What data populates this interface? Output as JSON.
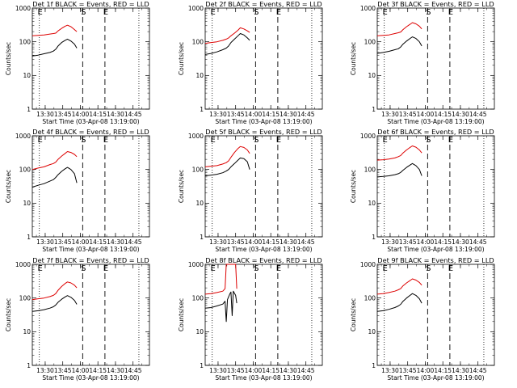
{
  "colors": {
    "events": "#000000",
    "lld": "#dd0000",
    "axes": "#000000",
    "background": "#ffffff"
  },
  "shared": {
    "ylabel": "Counts/sec",
    "xlabel": "Start Time (03-Apr-08 13:19:00)",
    "x_tick_labels": [
      "13:30",
      "13:45",
      "14:00",
      "14:15",
      "14:30",
      "14:45"
    ],
    "y_tick_labels": [
      "1",
      "10",
      "100",
      "1000"
    ],
    "marker_labels": [
      "E",
      "S",
      "E"
    ]
  },
  "chart_data": [
    {
      "type": "line",
      "title": "Det 1f BLACK = Events, RED = LLD",
      "xlabel": "Start Time (03-Apr-08 13:19:00)",
      "ylabel": "Counts/sec",
      "x_unit": "minutes after 13:19:00",
      "xlim": [
        0,
        100
      ],
      "ylim": [
        1,
        1000
      ],
      "yscale": "log",
      "xticks_min": [
        11,
        26,
        41,
        56,
        71,
        86
      ],
      "dotted_lines_min": [
        6,
        91
      ],
      "dashed_lines_min": [
        43,
        62
      ],
      "markers": [
        {
          "label": "E",
          "x": 6
        },
        {
          "label": "S",
          "x": 43
        },
        {
          "label": "E",
          "x": 62
        }
      ],
      "series": [
        {
          "color": "#000000",
          "x": [
            0,
            5,
            10,
            15,
            18,
            20,
            22,
            25,
            28,
            30,
            33,
            36,
            38
          ],
          "values": [
            38,
            40,
            44,
            48,
            53,
            60,
            75,
            95,
            110,
            120,
            105,
            85,
            65
          ]
        },
        {
          "color": "#dd0000",
          "x": [
            0,
            5,
            10,
            15,
            18,
            20,
            22,
            25,
            28,
            30,
            33,
            36,
            38
          ],
          "values": [
            150,
            155,
            160,
            170,
            175,
            180,
            210,
            250,
            290,
            310,
            280,
            230,
            200
          ]
        }
      ]
    },
    {
      "type": "line",
      "title": "Det 2f BLACK = Events, RED = LLD",
      "xlabel": "Start Time (03-Apr-08 13:19:00)",
      "ylabel": "Counts/sec",
      "x_unit": "minutes after 13:19:00",
      "xlim": [
        0,
        100
      ],
      "ylim": [
        1,
        1000
      ],
      "yscale": "log",
      "xticks_min": [
        11,
        26,
        41,
        56,
        71,
        86
      ],
      "dotted_lines_min": [
        6,
        91
      ],
      "dashed_lines_min": [
        43,
        62
      ],
      "markers": [
        {
          "label": "E",
          "x": 6
        },
        {
          "label": "S",
          "x": 43
        },
        {
          "label": "E",
          "x": 62
        }
      ],
      "series": [
        {
          "color": "#000000",
          "x": [
            0,
            5,
            10,
            15,
            18,
            20,
            22,
            25,
            28,
            30,
            33,
            36,
            38
          ],
          "values": [
            42,
            45,
            50,
            58,
            65,
            75,
            95,
            120,
            150,
            175,
            160,
            130,
            110
          ]
        },
        {
          "color": "#dd0000",
          "x": [
            0,
            5,
            10,
            15,
            18,
            20,
            22,
            25,
            28,
            30,
            33,
            36,
            38
          ],
          "values": [
            90,
            95,
            100,
            110,
            120,
            130,
            150,
            180,
            220,
            260,
            240,
            210,
            190
          ]
        }
      ]
    },
    {
      "type": "line",
      "title": "Det 3f BLACK = Events, RED = LLD",
      "xlabel": "Start Time (03-Apr-08 13:19:00)",
      "ylabel": "Counts/sec",
      "x_unit": "minutes after 13:19:00",
      "xlim": [
        0,
        100
      ],
      "ylim": [
        1,
        1000
      ],
      "yscale": "log",
      "xticks_min": [
        11,
        26,
        41,
        56,
        71,
        86
      ],
      "dotted_lines_min": [
        6,
        91
      ],
      "dashed_lines_min": [
        43,
        62
      ],
      "markers": [
        {
          "label": "E",
          "x": 6
        },
        {
          "label": "S",
          "x": 43
        },
        {
          "label": "E",
          "x": 62
        }
      ],
      "series": [
        {
          "color": "#000000",
          "x": [
            0,
            5,
            10,
            15,
            18,
            20,
            22,
            25,
            28,
            30,
            33,
            36,
            38
          ],
          "values": [
            45,
            48,
            52,
            58,
            62,
            70,
            85,
            105,
            125,
            140,
            125,
            100,
            75
          ]
        },
        {
          "color": "#dd0000",
          "x": [
            0,
            5,
            10,
            15,
            18,
            20,
            22,
            25,
            28,
            30,
            33,
            36,
            38
          ],
          "values": [
            150,
            155,
            160,
            175,
            185,
            195,
            230,
            280,
            330,
            370,
            340,
            290,
            240
          ]
        }
      ]
    },
    {
      "type": "line",
      "title": "Det 4f BLACK = Events, RED = LLD",
      "xlabel": "Start Time (03-Apr-08 13:19:00)",
      "ylabel": "Counts/sec",
      "x_unit": "minutes after 13:19:00",
      "xlim": [
        0,
        100
      ],
      "ylim": [
        1,
        1000
      ],
      "yscale": "log",
      "xticks_min": [
        11,
        26,
        41,
        56,
        71,
        86
      ],
      "dotted_lines_min": [
        6,
        91
      ],
      "dashed_lines_min": [
        43,
        62
      ],
      "markers": [
        {
          "label": "E",
          "x": 6
        },
        {
          "label": "S",
          "x": 43
        },
        {
          "label": "E",
          "x": 62
        }
      ],
      "series": [
        {
          "color": "#000000",
          "x": [
            0,
            5,
            10,
            15,
            18,
            20,
            22,
            25,
            28,
            30,
            33,
            36,
            38
          ],
          "values": [
            30,
            34,
            38,
            45,
            50,
            58,
            70,
            88,
            105,
            115,
            100,
            75,
            40
          ]
        },
        {
          "color": "#dd0000",
          "x": [
            0,
            5,
            10,
            15,
            18,
            20,
            22,
            25,
            28,
            30,
            33,
            36,
            38
          ],
          "values": [
            100,
            110,
            120,
            140,
            150,
            165,
            200,
            250,
            300,
            340,
            320,
            280,
            240
          ]
        }
      ]
    },
    {
      "type": "line",
      "title": "Det 5f BLACK = Events, RED = LLD",
      "xlabel": "Start Time (03-Apr-08 13:19:00)",
      "ylabel": "Counts/sec",
      "x_unit": "minutes after 13:19:00",
      "xlim": [
        0,
        100
      ],
      "ylim": [
        1,
        1000
      ],
      "yscale": "log",
      "xticks_min": [
        11,
        26,
        41,
        56,
        71,
        86
      ],
      "dotted_lines_min": [
        6,
        91
      ],
      "dashed_lines_min": [
        43,
        62
      ],
      "markers": [
        {
          "label": "E",
          "x": 6
        },
        {
          "label": "S",
          "x": 43
        },
        {
          "label": "E",
          "x": 62
        }
      ],
      "series": [
        {
          "color": "#000000",
          "x": [
            0,
            5,
            10,
            15,
            18,
            20,
            22,
            25,
            28,
            30,
            33,
            36,
            38
          ],
          "values": [
            65,
            68,
            72,
            80,
            90,
            100,
            120,
            150,
            190,
            220,
            210,
            170,
            100
          ]
        },
        {
          "color": "#dd0000",
          "x": [
            0,
            5,
            10,
            15,
            18,
            20,
            22,
            25,
            28,
            30,
            33,
            36,
            38
          ],
          "values": [
            120,
            125,
            130,
            145,
            160,
            180,
            230,
            320,
            420,
            480,
            450,
            380,
            300
          ]
        }
      ]
    },
    {
      "type": "line",
      "title": "Det 6f BLACK = Events, RED = LLD",
      "xlabel": "Start Time (03-Apr-08 13:19:00)",
      "ylabel": "Counts/sec",
      "x_unit": "minutes after 13:19:00",
      "xlim": [
        0,
        100
      ],
      "ylim": [
        1,
        1000
      ],
      "yscale": "log",
      "xticks_min": [
        11,
        26,
        41,
        56,
        71,
        86
      ],
      "dotted_lines_min": [
        6,
        91
      ],
      "dashed_lines_min": [
        43,
        62
      ],
      "markers": [
        {
          "label": "E",
          "x": 6
        },
        {
          "label": "S",
          "x": 43
        },
        {
          "label": "E",
          "x": 62
        }
      ],
      "series": [
        {
          "color": "#000000",
          "x": [
            0,
            5,
            10,
            15,
            18,
            20,
            22,
            25,
            28,
            30,
            33,
            36,
            38
          ],
          "values": [
            60,
            62,
            65,
            70,
            75,
            82,
            95,
            115,
            135,
            150,
            130,
            100,
            65
          ]
        },
        {
          "color": "#dd0000",
          "x": [
            0,
            5,
            10,
            15,
            18,
            20,
            22,
            25,
            28,
            30,
            33,
            36,
            38
          ],
          "values": [
            190,
            195,
            205,
            220,
            240,
            260,
            310,
            380,
            450,
            500,
            460,
            380,
            310
          ]
        }
      ]
    },
    {
      "type": "line",
      "title": "Det 7f BLACK = Events, RED = LLD",
      "xlabel": "Start Time (03-Apr-08 13:19:00)",
      "ylabel": "Counts/sec",
      "x_unit": "minutes after 13:19:00",
      "xlim": [
        0,
        100
      ],
      "ylim": [
        1,
        1000
      ],
      "yscale": "log",
      "xticks_min": [
        11,
        26,
        41,
        56,
        71,
        86
      ],
      "dotted_lines_min": [
        6,
        91
      ],
      "dashed_lines_min": [
        43,
        62
      ],
      "markers": [
        {
          "label": "E",
          "x": 6
        },
        {
          "label": "S",
          "x": 43
        },
        {
          "label": "E",
          "x": 62
        }
      ],
      "series": [
        {
          "color": "#000000",
          "x": [
            0,
            5,
            10,
            15,
            18,
            20,
            22,
            25,
            28,
            30,
            33,
            36,
            38
          ],
          "values": [
            40,
            42,
            45,
            50,
            55,
            62,
            75,
            92,
            108,
            118,
            105,
            85,
            65
          ]
        },
        {
          "color": "#dd0000",
          "x": [
            0,
            5,
            10,
            15,
            18,
            20,
            22,
            25,
            28,
            30,
            33,
            36,
            38
          ],
          "values": [
            90,
            95,
            100,
            110,
            120,
            135,
            170,
            220,
            270,
            300,
            280,
            240,
            200
          ]
        }
      ]
    },
    {
      "type": "line",
      "title": "Det 8f BLACK = Events, RED = LLD",
      "xlabel": "Start Time (03-Apr-08 13:19:00)",
      "ylabel": "Counts/sec",
      "x_unit": "minutes after 13:19:00",
      "xlim": [
        0,
        100
      ],
      "ylim": [
        1,
        1000
      ],
      "yscale": "log",
      "xticks_min": [
        11,
        26,
        41,
        56,
        71,
        86
      ],
      "dotted_lines_min": [
        6,
        91
      ],
      "dashed_lines_min": [
        43,
        62
      ],
      "markers": [
        {
          "label": "E",
          "x": 6
        },
        {
          "label": "S",
          "x": 43
        },
        {
          "label": "E",
          "x": 62
        }
      ],
      "series": [
        {
          "color": "#000000",
          "x": [
            0,
            5,
            10,
            15,
            17,
            18,
            19,
            21,
            22,
            23,
            24,
            26,
            27
          ],
          "values": [
            50,
            52,
            58,
            66,
            80,
            20,
            90,
            130,
            150,
            30,
            160,
            120,
            70
          ]
        },
        {
          "color": "#dd0000",
          "x": [
            0,
            5,
            10,
            15,
            17,
            18,
            19,
            21,
            22,
            23,
            24,
            26,
            27
          ],
          "values": [
            130,
            135,
            145,
            160,
            190,
            1000,
            1000,
            1000,
            1000,
            1000,
            1000,
            1000,
            190
          ]
        }
      ]
    },
    {
      "type": "line",
      "title": "Det 9f BLACK = Events, RED = LLD",
      "xlabel": "Start Time (03-Apr-08 13:19:00)",
      "ylabel": "Counts/sec",
      "x_unit": "minutes after 13:19:00",
      "xlim": [
        0,
        100
      ],
      "ylim": [
        1,
        1000
      ],
      "yscale": "log",
      "xticks_min": [
        11,
        26,
        41,
        56,
        71,
        86
      ],
      "dotted_lines_min": [
        6,
        91
      ],
      "dashed_lines_min": [
        43,
        62
      ],
      "markers": [
        {
          "label": "E",
          "x": 6
        },
        {
          "label": "S",
          "x": 43
        },
        {
          "label": "E",
          "x": 62
        }
      ],
      "series": [
        {
          "color": "#000000",
          "x": [
            0,
            5,
            10,
            15,
            18,
            20,
            22,
            25,
            28,
            30,
            33,
            36,
            38
          ],
          "values": [
            40,
            42,
            46,
            52,
            58,
            65,
            80,
            100,
            120,
            135,
            120,
            95,
            70
          ]
        },
        {
          "color": "#dd0000",
          "x": [
            0,
            5,
            10,
            15,
            18,
            20,
            22,
            25,
            28,
            30,
            33,
            36,
            38
          ],
          "values": [
            130,
            135,
            145,
            160,
            175,
            190,
            230,
            280,
            330,
            370,
            340,
            290,
            240
          ]
        }
      ]
    }
  ]
}
